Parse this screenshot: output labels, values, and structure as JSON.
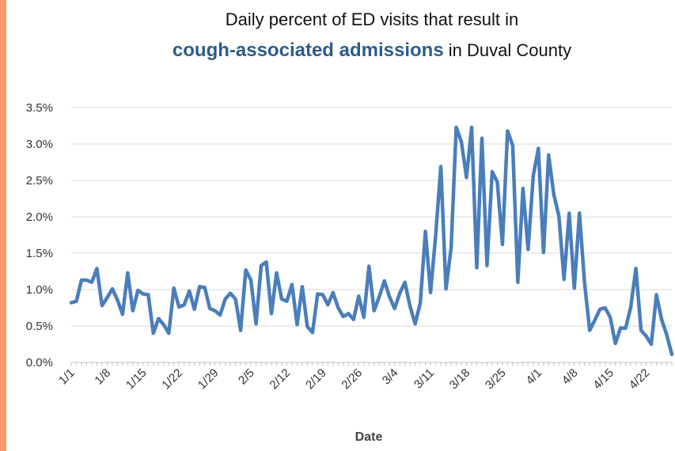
{
  "chart_data": {
    "type": "line",
    "title_line1": "Daily percent of ED visits that result in",
    "title_emphasis": "cough-associated admissions",
    "title_suffix": " in Duval County",
    "xlabel": "Date",
    "ylabel": "",
    "ylim": [
      0,
      0.035
    ],
    "ytick_values": [
      0,
      0.005,
      0.01,
      0.015,
      0.02,
      0.025,
      0.03,
      0.035
    ],
    "ytick_labels": [
      "0.0%",
      "0.5%",
      "1.0%",
      "1.5%",
      "2.0%",
      "2.5%",
      "3.0%",
      "3.5%"
    ],
    "x_start": "1/1",
    "xtick_labels": [
      "1/1",
      "1/8",
      "1/15",
      "1/22",
      "1/29",
      "2/5",
      "2/12",
      "2/19",
      "2/26",
      "3/4",
      "3/11",
      "3/18",
      "3/25",
      "4/1",
      "4/8",
      "4/15",
      "4/22"
    ],
    "grid": true,
    "line_color": "#4A7EBB",
    "accent_color": "#F79A6A",
    "title_emphasis_color": "#2E5C8A",
    "series": [
      {
        "values": [
          0.0082,
          0.0084,
          0.0113,
          0.0113,
          0.011,
          0.0129,
          0.0078,
          0.0089,
          0.0101,
          0.0086,
          0.0066,
          0.0123,
          0.0071,
          0.0099,
          0.0094,
          0.0093,
          0.004,
          0.006,
          0.0052,
          0.004,
          0.0102,
          0.0076,
          0.0079,
          0.0098,
          0.0073,
          0.0104,
          0.0103,
          0.0074,
          0.0071,
          0.0065,
          0.0087,
          0.0095,
          0.0087,
          0.0044,
          0.0127,
          0.0113,
          0.0053,
          0.0133,
          0.0138,
          0.0067,
          0.0123,
          0.0087,
          0.0084,
          0.0107,
          0.0052,
          0.0104,
          0.0049,
          0.0041,
          0.0094,
          0.0093,
          0.0079,
          0.0096,
          0.0075,
          0.0063,
          0.0067,
          0.0059,
          0.0091,
          0.0062,
          0.0132,
          0.0071,
          0.009,
          0.0112,
          0.009,
          0.0074,
          0.0095,
          0.011,
          0.0077,
          0.0053,
          0.0082,
          0.018,
          0.0096,
          0.0175,
          0.0269,
          0.0101,
          0.0157,
          0.0323,
          0.0303,
          0.0254,
          0.0323,
          0.013,
          0.0308,
          0.0133,
          0.0262,
          0.0248,
          0.0162,
          0.0318,
          0.0298,
          0.011,
          0.0239,
          0.0155,
          0.0256,
          0.0294,
          0.0151,
          0.0285,
          0.0231,
          0.0201,
          0.0114,
          0.0205,
          0.0102,
          0.0205,
          0.0109,
          0.0044,
          0.0058,
          0.0073,
          0.0075,
          0.0062,
          0.0026,
          0.0047,
          0.0047,
          0.0076,
          0.0129,
          0.0044,
          0.0036,
          0.0025,
          0.0093,
          0.0059,
          0.0038,
          0.0011
        ]
      }
    ]
  }
}
